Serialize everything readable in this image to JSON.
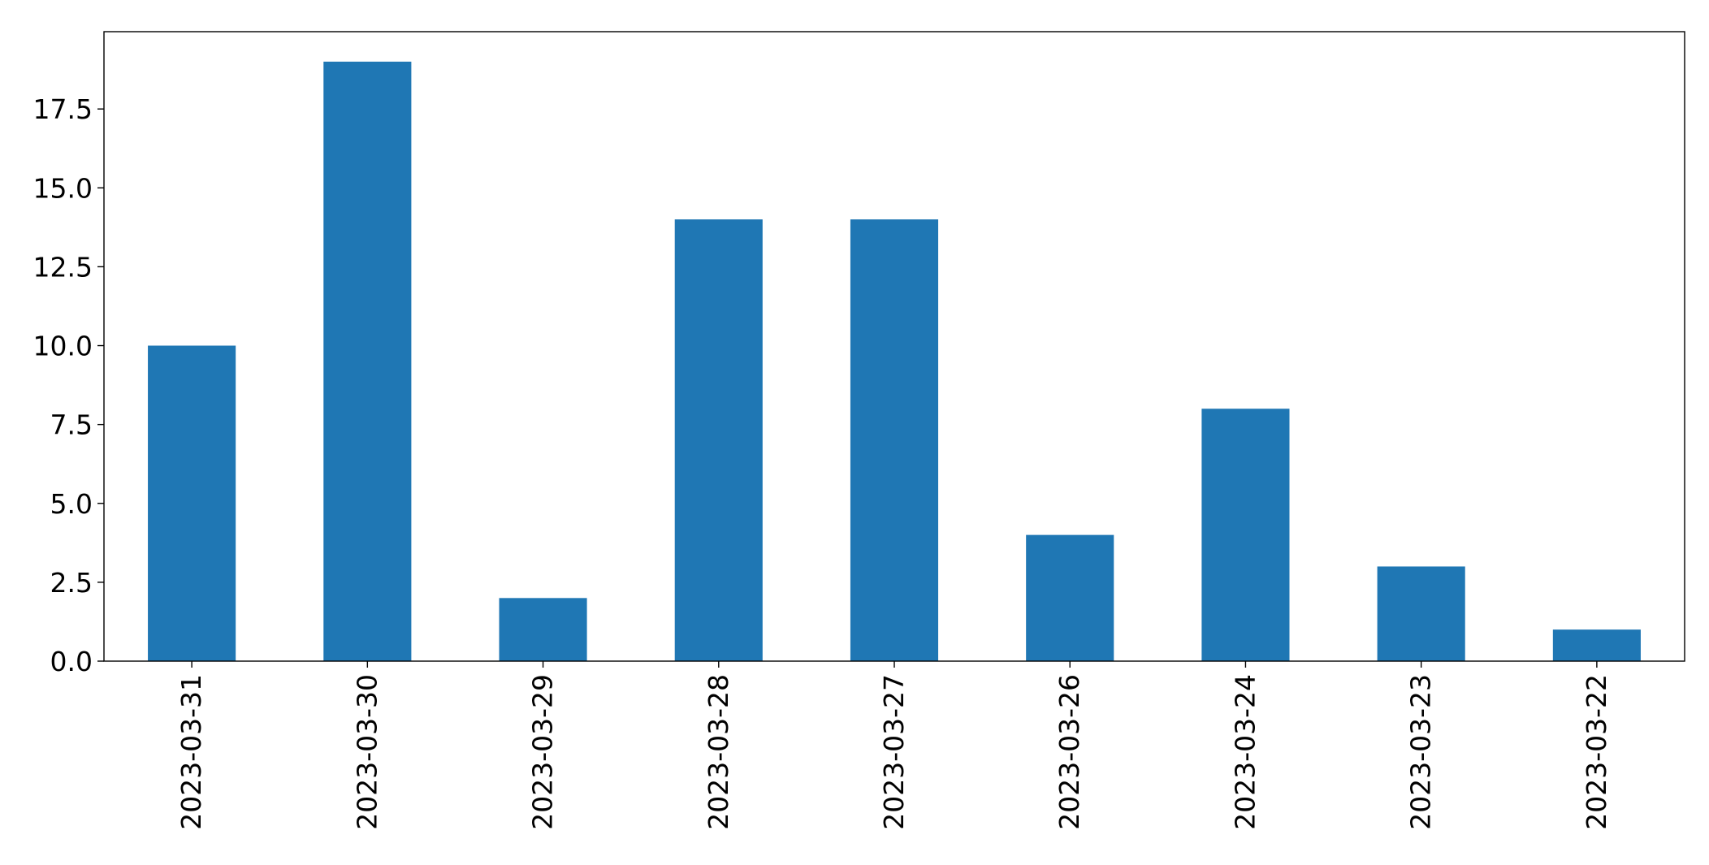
{
  "chart_data": {
    "type": "bar",
    "categories": [
      "2023-03-31",
      "2023-03-30",
      "2023-03-29",
      "2023-03-28",
      "2023-03-27",
      "2023-03-26",
      "2023-03-24",
      "2023-03-23",
      "2023-03-22"
    ],
    "values": [
      10,
      19,
      2,
      14,
      14,
      4,
      8,
      3,
      1
    ],
    "title": "",
    "xlabel": "",
    "ylabel": "",
    "ylim": [
      0,
      19.95
    ],
    "yticks": [
      0.0,
      2.5,
      5.0,
      7.5,
      10.0,
      12.5,
      15.0,
      17.5
    ],
    "ytick_labels": [
      "0.0",
      "2.5",
      "5.0",
      "7.5",
      "10.0",
      "12.5",
      "15.0",
      "17.5"
    ],
    "bar_color": "#1f77b4",
    "grid": false,
    "legend": "none"
  }
}
